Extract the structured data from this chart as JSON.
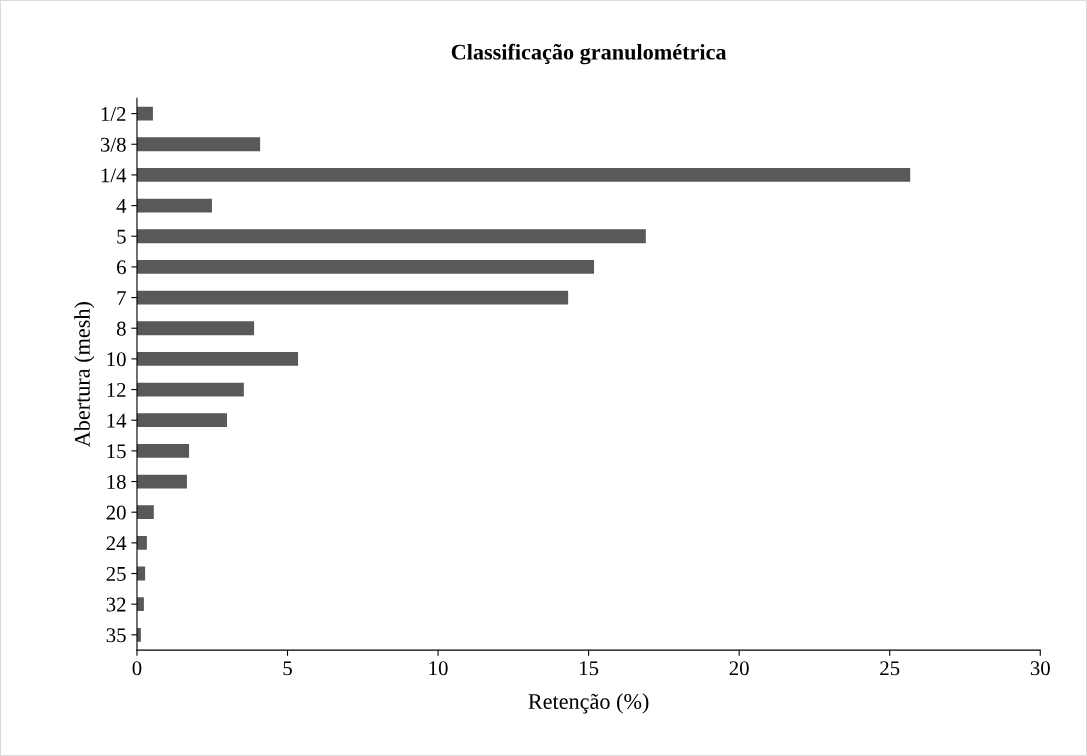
{
  "chart_data": {
    "type": "bar",
    "orientation": "horizontal",
    "title": "Classificação granulométrica",
    "xlabel": "Retenção (%)",
    "ylabel": "Abertura (mesh)",
    "categories": [
      "1/2",
      "3/8",
      "1/4",
      "4",
      "5",
      "6",
      "7",
      "8",
      "10",
      "12",
      "14",
      "15",
      "18",
      "20",
      "24",
      "25",
      "32",
      "35"
    ],
    "values": [
      0.53,
      4.09,
      25.68,
      2.49,
      16.9,
      15.18,
      14.32,
      3.89,
      5.35,
      3.55,
      2.99,
      1.73,
      1.66,
      0.56,
      0.33,
      0.27,
      0.23,
      0.13
    ],
    "color": "#595959",
    "xlim": [
      0,
      30
    ],
    "xticks": [
      0,
      5,
      10,
      15,
      20,
      25,
      30
    ],
    "grid": false,
    "legend": false
  }
}
